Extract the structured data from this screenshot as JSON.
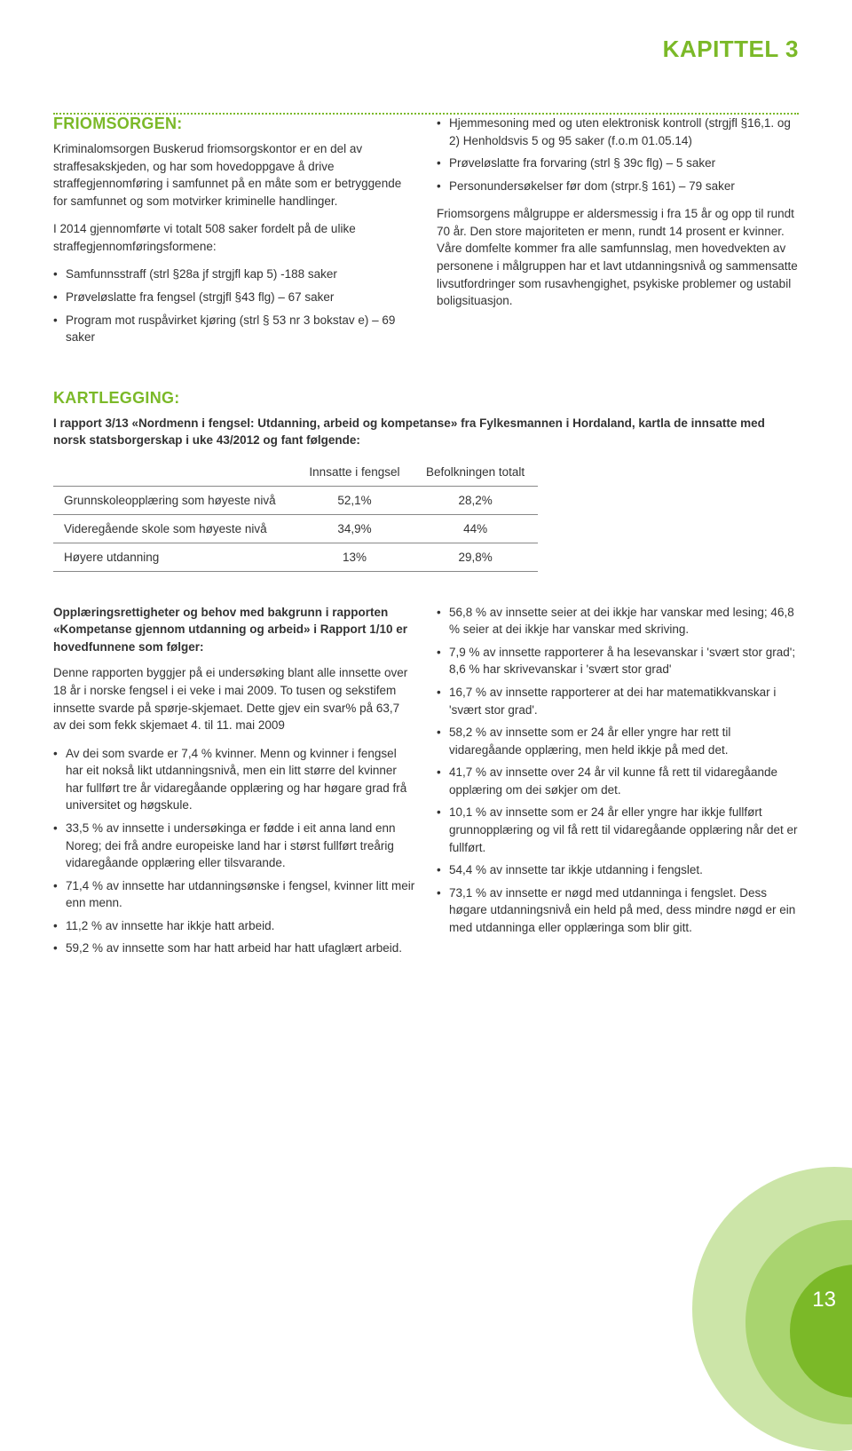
{
  "colors": {
    "accent": "#7bb928",
    "accent_light": "#a9d46f",
    "accent_lighter": "#cce5a8",
    "text": "#333333",
    "rule": "#888888",
    "background": "#ffffff"
  },
  "typography": {
    "body_fontsize_pt": 10,
    "heading_fontsize_pt": 14,
    "chapter_fontsize_pt": 20,
    "font_family": "Arial, Helvetica, sans-serif"
  },
  "page_number": "13",
  "chapter": "KAPITTEL 3",
  "friomsorgen": {
    "heading": "FRIOMSORGEN:",
    "intro": "Kriminalomsorgen Buskerud friomsorgskontor er en del av straffesakskjeden, og har som hovedoppgave å drive straffegjennomføring i samfunnet på en måte som er betryggende for samfunnet og som motvirker kriminelle handlinger.",
    "para2": "I 2014 gjennomførte vi totalt 508 saker fordelt på de ulike straffegjennomføringsformene:",
    "bullets_left": [
      "Samfunnsstraff (strl §28a jf strgjfl kap 5) -188 saker",
      "Prøveløslatte fra fengsel (strgjfl §43 flg) – 67 saker",
      "Program mot ruspåvirket kjøring (strl § 53 nr 3 bokstav e) – 69 saker"
    ],
    "bullets_right": [
      "Hjemmesoning med og uten elektronisk kontroll (strgjfl §16,1. og 2) Henholdsvis 5 og 95 saker (f.o.m 01.05.14)",
      "Prøveløslatte fra forvaring (strl § 39c flg) – 5 saker",
      "Personundersøkelser før dom (strpr.§ 161) – 79 saker"
    ],
    "para_right": "Friomsorgens målgruppe er aldersmessig i fra 15 år og opp til rundt 70 år. Den store majoriteten er menn, rundt 14 prosent er kvinner. Våre domfelte kommer fra alle samfunnslag, men hovedvekten av personene i målgruppen har et lavt utdanningsnivå og sammensatte livsutfordringer som rusavhengighet, psykiske problemer og ustabil boligsituasjon."
  },
  "kartlegging": {
    "heading": "KARTLEGGING:",
    "intro": "I rapport 3/13 «Nordmenn i fengsel: Utdanning, arbeid og kompetanse» fra Fylkesmannen i Hordaland, kartla de innsatte med norsk statsborgerskap i uke 43/2012 og fant følgende:",
    "table": {
      "columns": [
        "",
        "Innsatte i fengsel",
        "Befolkningen totalt"
      ],
      "rows": [
        [
          "Grunnskoleopplæring som høyeste nivå",
          "52,1%",
          "28,2%"
        ],
        [
          "Videregående skole som høyeste nivå",
          "34,9%",
          "44%"
        ],
        [
          "Høyere utdanning",
          "13%",
          "29,8%"
        ]
      ],
      "col_align": [
        "left",
        "center",
        "center"
      ],
      "border_color": "#888888",
      "fontsize_pt": 10
    }
  },
  "lower": {
    "left_intro_bold": "Opplæringsrettigheter og behov med bakgrunn i rapporten «Kompetanse gjennom utdanning og arbeid» i Rapport 1/10 er hovedfunnene som følger:",
    "left_para": "Denne rapporten byggjer på ei undersøking blant alle innsette over 18 år i norske fengsel i ei veke i mai 2009. To tusen og sekstifem innsette svarde på spørje-skjemaet. Dette gjev ein svar% på 63,7 av dei som fekk skjemaet 4. til 11. mai 2009",
    "left_bullets": [
      "Av dei som svarde er 7,4 % kvinner. Menn og kvinner i fengsel har eit nokså likt utdanningsnivå, men ein litt større del kvinner har fullført tre år vidaregåande opplæring og har høgare grad frå universitet og høgskule.",
      "33,5 % av innsette i undersøkinga er fødde i eit anna land enn Noreg; dei frå andre europeiske land har i størst fullført treårig vidaregåande opplæring eller tilsvarande.",
      "71,4 % av innsette har utdanningsønske i fengsel, kvinner litt meir enn menn.",
      "11,2 % av innsette har ikkje hatt arbeid.",
      "59,2 % av innsette som har hatt arbeid har hatt ufaglært arbeid."
    ],
    "right_bullets": [
      "56,8 % av innsette seier at dei ikkje har vanskar med lesing; 46,8 % seier at dei ikkje har vanskar med skriving.",
      "7,9 % av innsette rapporterer å ha lesevanskar i 'svært stor grad'; 8,6 % har skrivevanskar i 'svært stor grad'",
      "16,7 % av innsette rapporterer at dei har matematikkvanskar i 'svært stor grad'.",
      "58,2 % av innsette som er 24 år eller yngre har rett til vidaregåande opplæring, men held ikkje på med det.",
      "41,7 % av innsette over 24 år vil kunne få rett til vidaregåande opplæring om dei søkjer om det.",
      "10,1 % av innsette som er 24 år eller yngre har ikkje fullført grunnopplæring og vil få rett til vidaregåande opplæring når det er fullført.",
      "54,4 % av innsette tar ikkje utdanning i fengslet.",
      "73,1 % av innsette er nøgd med utdanninga i fengslet. Dess høgare utdanningsnivå ein held på med, dess mindre nøgd er ein med utdanninga eller opplæringa som blir gitt."
    ]
  }
}
